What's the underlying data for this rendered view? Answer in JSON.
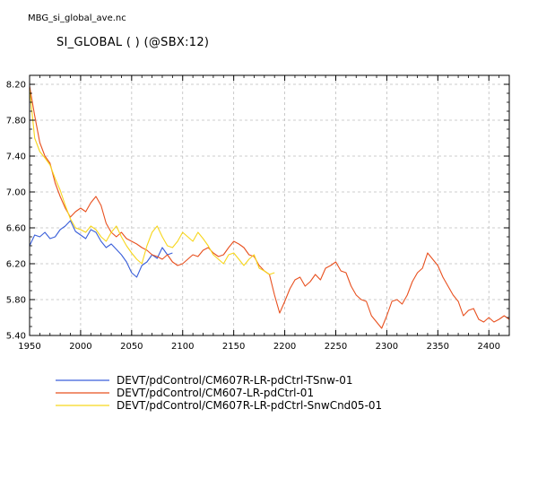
{
  "header": {
    "file_title": "MBG_si_global_ave.nc",
    "plot_title": "SI_GLOBAL ( ) (@SBX:12)"
  },
  "chart_data": {
    "type": "line",
    "title": "SI_GLOBAL ( ) (@SBX:12)",
    "xlabel": "",
    "ylabel": "",
    "xlim": [
      1950,
      2420
    ],
    "ylim": [
      5.4,
      8.3
    ],
    "x_ticks": [
      1950,
      2000,
      2050,
      2100,
      2150,
      2200,
      2250,
      2300,
      2350,
      2400
    ],
    "y_ticks": [
      5.4,
      5.8,
      6.2,
      6.6,
      7.0,
      7.4,
      7.8,
      8.2
    ],
    "y_tick_labels": [
      "5.40",
      "5.80",
      "6.20",
      "6.60",
      "7.00",
      "7.40",
      "7.80",
      "8.20"
    ],
    "grid": true,
    "legend_position": "bottom",
    "series": [
      {
        "name": "DEVT/pdControl/CM607R-LR-pdCtrl-TSnw-01",
        "color": "#3a5fd9",
        "x": [
          1950,
          1955,
          1960,
          1965,
          1970,
          1975,
          1980,
          1985,
          1990,
          1995,
          2000,
          2005,
          2010,
          2015,
          2020,
          2025,
          2030,
          2035,
          2040,
          2045,
          2050,
          2055,
          2060,
          2065,
          2070,
          2075,
          2080,
          2085,
          2090
        ],
        "values": [
          6.4,
          6.52,
          6.5,
          6.55,
          6.48,
          6.5,
          6.58,
          6.62,
          6.68,
          6.56,
          6.52,
          6.48,
          6.58,
          6.55,
          6.45,
          6.38,
          6.42,
          6.36,
          6.3,
          6.22,
          6.1,
          6.05,
          6.18,
          6.22,
          6.3,
          6.26,
          6.38,
          6.3,
          6.32
        ]
      },
      {
        "name": "DEVT/pdControl/CM607-LR-pdCtrl-01",
        "color": "#e8501f",
        "x": [
          1950,
          1955,
          1960,
          1965,
          1970,
          1975,
          1980,
          1985,
          1990,
          1995,
          2000,
          2005,
          2010,
          2015,
          2020,
          2025,
          2030,
          2035,
          2040,
          2045,
          2050,
          2055,
          2060,
          2065,
          2070,
          2075,
          2080,
          2085,
          2090,
          2095,
          2100,
          2105,
          2110,
          2115,
          2120,
          2125,
          2130,
          2135,
          2140,
          2145,
          2150,
          2155,
          2160,
          2165,
          2170,
          2175,
          2180,
          2185,
          2190,
          2195,
          2200,
          2205,
          2210,
          2215,
          2220,
          2225,
          2230,
          2235,
          2240,
          2245,
          2250,
          2255,
          2260,
          2265,
          2270,
          2275,
          2280,
          2285,
          2290,
          2295,
          2300,
          2305,
          2310,
          2315,
          2320,
          2325,
          2330,
          2335,
          2340,
          2345,
          2350,
          2355,
          2360,
          2365,
          2370,
          2375,
          2380,
          2385,
          2390,
          2395,
          2400,
          2405,
          2410,
          2415,
          2420
        ],
        "values": [
          8.18,
          7.85,
          7.55,
          7.4,
          7.32,
          7.1,
          6.95,
          6.82,
          6.72,
          6.78,
          6.82,
          6.78,
          6.88,
          6.95,
          6.85,
          6.65,
          6.55,
          6.5,
          6.55,
          6.48,
          6.45,
          6.42,
          6.38,
          6.35,
          6.3,
          6.28,
          6.25,
          6.3,
          6.22,
          6.18,
          6.2,
          6.25,
          6.3,
          6.28,
          6.35,
          6.38,
          6.32,
          6.28,
          6.3,
          6.38,
          6.45,
          6.42,
          6.38,
          6.3,
          6.28,
          6.18,
          6.12,
          6.08,
          5.85,
          5.65,
          5.78,
          5.92,
          6.02,
          6.05,
          5.95,
          6.0,
          6.08,
          6.02,
          6.15,
          6.18,
          6.22,
          6.12,
          6.1,
          5.95,
          5.85,
          5.8,
          5.78,
          5.62,
          5.55,
          5.48,
          5.62,
          5.78,
          5.8,
          5.75,
          5.85,
          6.0,
          6.1,
          6.15,
          6.32,
          6.25,
          6.18,
          6.05,
          5.95,
          5.85,
          5.78,
          5.62,
          5.68,
          5.7,
          5.58,
          5.55,
          5.6,
          5.55,
          5.58,
          5.62,
          5.58
        ]
      },
      {
        "name": "DEVT/pdControl/CM607R-LR-pdCtrl-SnwCnd05-01",
        "color": "#f7d61c",
        "x": [
          1950,
          1955,
          1960,
          1965,
          1970,
          1975,
          1980,
          1985,
          1990,
          1995,
          2000,
          2005,
          2010,
          2015,
          2020,
          2025,
          2030,
          2035,
          2040,
          2045,
          2050,
          2055,
          2060,
          2065,
          2070,
          2075,
          2080,
          2085,
          2090,
          2095,
          2100,
          2105,
          2110,
          2115,
          2120,
          2125,
          2130,
          2135,
          2140,
          2145,
          2150,
          2155,
          2160,
          2165,
          2170,
          2175,
          2180,
          2185,
          2190
        ],
        "values": [
          8.15,
          7.6,
          7.45,
          7.38,
          7.3,
          7.15,
          7.02,
          6.85,
          6.7,
          6.6,
          6.58,
          6.55,
          6.62,
          6.58,
          6.5,
          6.45,
          6.55,
          6.62,
          6.5,
          6.4,
          6.32,
          6.25,
          6.2,
          6.4,
          6.55,
          6.62,
          6.5,
          6.4,
          6.38,
          6.45,
          6.55,
          6.5,
          6.45,
          6.55,
          6.48,
          6.4,
          6.3,
          6.25,
          6.2,
          6.3,
          6.32,
          6.25,
          6.18,
          6.25,
          6.3,
          6.15,
          6.12,
          6.08,
          6.1
        ]
      }
    ]
  }
}
